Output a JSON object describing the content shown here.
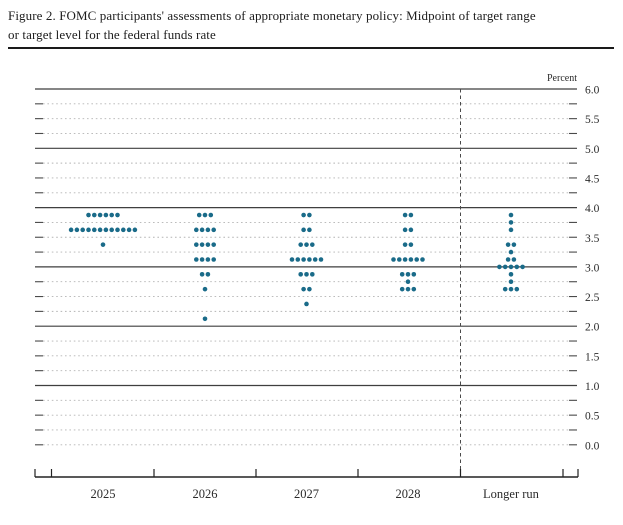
{
  "figure": {
    "title_line1": "Figure 2. FOMC participants' assessments of appropriate monetary policy: Midpoint of target range",
    "title_line2": "or target level for the federal funds rate"
  },
  "chart_data": {
    "type": "scatter",
    "subtype": "fomc-dot-plot",
    "title": "Figure 2. FOMC participants' assessments of appropriate monetary policy: Midpoint of target range or target level for the federal funds rate",
    "unit_label": "Percent",
    "ylim": [
      0.0,
      6.0
    ],
    "y_minor_step": 0.25,
    "y_label_step": 0.5,
    "y_tick_labels": [
      "6.0",
      "5.5",
      "5.0",
      "4.5",
      "4.0",
      "3.5",
      "3.0",
      "2.5",
      "2.0",
      "1.5",
      "1.0",
      "0.5",
      "0.0"
    ],
    "solid_gridlines": [
      6.0,
      5.0,
      4.0,
      3.0,
      2.0,
      1.0
    ],
    "grid_on": true,
    "legend_position": "none",
    "dot_color": "#1a6b89",
    "categories": [
      "2025",
      "2026",
      "2027",
      "2028",
      "Longer run"
    ],
    "series": [
      {
        "category": "2025",
        "dots": [
          {
            "rate": 3.875,
            "count": 6
          },
          {
            "rate": 3.625,
            "count": 12
          },
          {
            "rate": 3.375,
            "count": 1
          }
        ]
      },
      {
        "category": "2026",
        "dots": [
          {
            "rate": 3.875,
            "count": 3
          },
          {
            "rate": 3.625,
            "count": 4
          },
          {
            "rate": 3.375,
            "count": 4
          },
          {
            "rate": 3.125,
            "count": 4
          },
          {
            "rate": 2.875,
            "count": 2
          },
          {
            "rate": 2.625,
            "count": 1
          },
          {
            "rate": 2.125,
            "count": 1
          }
        ]
      },
      {
        "category": "2027",
        "dots": [
          {
            "rate": 3.875,
            "count": 2
          },
          {
            "rate": 3.625,
            "count": 2
          },
          {
            "rate": 3.375,
            "count": 3
          },
          {
            "rate": 3.125,
            "count": 6
          },
          {
            "rate": 2.875,
            "count": 3
          },
          {
            "rate": 2.625,
            "count": 2
          },
          {
            "rate": 2.375,
            "count": 1
          }
        ]
      },
      {
        "category": "2028",
        "dots": [
          {
            "rate": 3.875,
            "count": 2
          },
          {
            "rate": 3.625,
            "count": 2
          },
          {
            "rate": 3.375,
            "count": 2
          },
          {
            "rate": 3.125,
            "count": 6
          },
          {
            "rate": 2.875,
            "count": 3
          },
          {
            "rate": 2.75,
            "count": 1
          },
          {
            "rate": 2.625,
            "count": 3
          }
        ]
      },
      {
        "category": "Longer run",
        "dots": [
          {
            "rate": 3.875,
            "count": 1
          },
          {
            "rate": 3.75,
            "count": 1
          },
          {
            "rate": 3.625,
            "count": 1
          },
          {
            "rate": 3.375,
            "count": 2
          },
          {
            "rate": 3.25,
            "count": 1
          },
          {
            "rate": 3.125,
            "count": 2
          },
          {
            "rate": 3.0,
            "count": 5
          },
          {
            "rate": 2.875,
            "count": 1
          },
          {
            "rate": 2.75,
            "count": 1
          },
          {
            "rate": 2.625,
            "count": 3
          }
        ]
      }
    ]
  }
}
